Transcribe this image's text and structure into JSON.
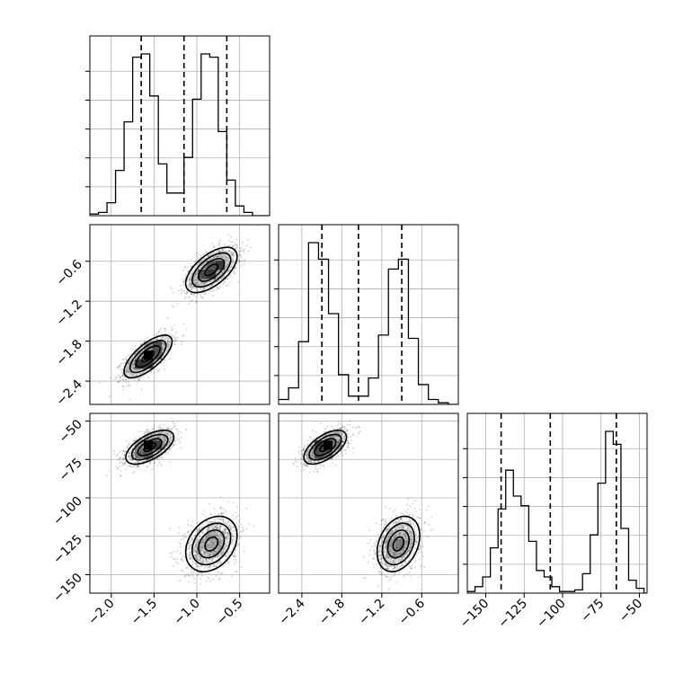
{
  "chart_data": {
    "type": "corner",
    "parameters": [
      {
        "name": "",
        "range": [
          -2.25,
          -0.15
        ],
        "ticks": [
          -2.0,
          -1.5,
          -1.0,
          -0.5
        ],
        "tick_labels": [
          "−2.0",
          "−1.5",
          "−1.0",
          "−0.5"
        ]
      },
      {
        "name": "",
        "range": [
          -2.75,
          -0.05
        ],
        "ticks": [
          -2.4,
          -1.8,
          -1.2,
          -0.6
        ],
        "tick_labels": [
          "−2.4",
          "−1.8",
          "−1.2",
          "−0.6"
        ]
      },
      {
        "name": "",
        "range": [
          -162,
          -45
        ],
        "ticks": [
          -150,
          -125,
          -100,
          -75,
          -50
        ],
        "tick_labels": [
          "−150",
          "−125",
          "−100",
          "−75",
          "−50"
        ]
      }
    ],
    "histograms": [
      {
        "param": 0,
        "bin_edges": [
          -2.25,
          -2.15,
          -2.05,
          -1.95,
          -1.85,
          -1.75,
          -1.65,
          -1.55,
          -1.45,
          -1.35,
          -1.25,
          -1.15,
          -1.05,
          -0.95,
          -0.85,
          -0.75,
          -0.65,
          -0.55,
          -0.45,
          -0.35,
          -0.25,
          -0.15
        ],
        "counts": [
          1,
          2,
          8,
          28,
          58,
          98,
          100,
          74,
          32,
          14,
          14,
          36,
          72,
          100,
          98,
          52,
          22,
          6,
          2,
          0,
          0
        ],
        "quantiles": [
          -1.65,
          -1.15,
          -0.65
        ]
      },
      {
        "param": 1,
        "bin_edges": [
          -2.75,
          -2.6,
          -2.45,
          -2.3,
          -2.15,
          -2.0,
          -1.85,
          -1.7,
          -1.55,
          -1.4,
          -1.25,
          -1.1,
          -0.95,
          -0.8,
          -0.65,
          -0.5,
          -0.35,
          -0.2,
          -0.05
        ],
        "counts": [
          3,
          10,
          38,
          98,
          88,
          55,
          18,
          5,
          5,
          16,
          42,
          82,
          88,
          40,
          12,
          3,
          1,
          0
        ],
        "quantiles": [
          -2.1,
          -1.55,
          -0.9
        ]
      },
      {
        "param": 2,
        "bin_edges": [
          -162,
          -157,
          -152,
          -147,
          -142,
          -137,
          -132,
          -127,
          -122,
          -117,
          -112,
          -107,
          -102,
          -97,
          -92,
          -87,
          -82,
          -77,
          -72,
          -67,
          -62,
          -57,
          -52,
          -47,
          -45
        ],
        "counts": [
          1,
          4,
          10,
          28,
          52,
          76,
          60,
          54,
          32,
          14,
          10,
          4,
          1,
          1,
          2,
          12,
          36,
          68,
          100,
          92,
          40,
          8,
          3,
          0
        ],
        "quantiles": [
          -140,
          -108,
          -65
        ]
      }
    ],
    "scatter_panels": [
      {
        "x_param": 0,
        "y_param": 1,
        "n_points": 2600,
        "clusters": [
          {
            "center": [
              -1.57,
              -2.03
            ],
            "sd": [
              0.14,
              0.16
            ],
            "rho": 0.7,
            "weight": 0.5
          },
          {
            "center": [
              -0.83,
              -0.73
            ],
            "sd": [
              0.15,
              0.17
            ],
            "rho": 0.6,
            "weight": 0.5
          }
        ]
      },
      {
        "x_param": 0,
        "y_param": 2,
        "n_points": 2600,
        "clusters": [
          {
            "center": [
              -1.55,
              -67
            ],
            "sd": [
              0.14,
              5.5
            ],
            "rho": 0.6,
            "weight": 0.5
          },
          {
            "center": [
              -0.83,
              -130
            ],
            "sd": [
              0.15,
              9.0
            ],
            "rho": 0.3,
            "weight": 0.5
          }
        ]
      },
      {
        "x_param": 1,
        "y_param": 2,
        "n_points": 2600,
        "clusters": [
          {
            "center": [
              -2.05,
              -67
            ],
            "sd": [
              0.16,
              5.5
            ],
            "rho": 0.6,
            "weight": 0.5
          },
          {
            "center": [
              -0.95,
              -130
            ],
            "sd": [
              0.16,
              9.0
            ],
            "rho": 0.3,
            "weight": 0.5
          }
        ]
      }
    ],
    "contour_levels_sigma": [
      0.5,
      1.0,
      1.5,
      2.0
    ],
    "grid": true,
    "legend": "none",
    "title": "",
    "xlabel": "",
    "ylabel": ""
  }
}
